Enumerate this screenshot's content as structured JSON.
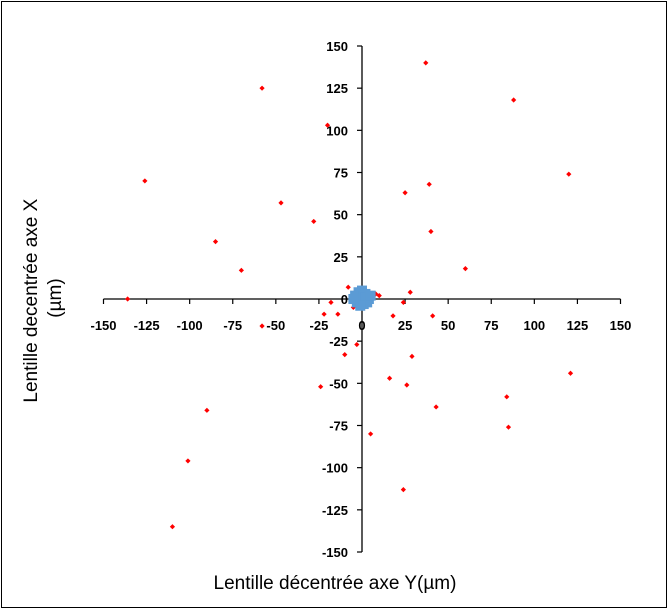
{
  "chart_data": {
    "type": "scatter",
    "title": "",
    "xlabel": "Lentille décentrée axe Y(µm)",
    "ylabel_lines": [
      "Lentille decentrée axe X",
      "(µm)"
    ],
    "xlim": [
      -150,
      150
    ],
    "ylim": [
      -150,
      150
    ],
    "x_ticks": [
      -150,
      -125,
      -100,
      -75,
      -50,
      -25,
      0,
      25,
      50,
      75,
      100,
      125,
      150
    ],
    "y_ticks": [
      -150,
      -125,
      -100,
      -75,
      -50,
      -25,
      0,
      25,
      50,
      75,
      100,
      125,
      150
    ],
    "grid": false,
    "legend": "none",
    "series": [
      {
        "color": "#ff0000",
        "marker": "diamond",
        "points": [
          [
            -136,
            0
          ],
          [
            -126,
            70
          ],
          [
            -110,
            -135
          ],
          [
            -101,
            -96
          ],
          [
            -90,
            -66
          ],
          [
            -85,
            34
          ],
          [
            -70,
            17
          ],
          [
            -58,
            125
          ],
          [
            -58,
            -16
          ],
          [
            -47,
            57
          ],
          [
            -28,
            46
          ],
          [
            -24,
            -52
          ],
          [
            -22,
            -9
          ],
          [
            -20,
            103
          ],
          [
            -18,
            -2
          ],
          [
            -14,
            -9
          ],
          [
            -10,
            -33
          ],
          [
            -8,
            7
          ],
          [
            -5,
            -5
          ],
          [
            -3,
            -27
          ],
          [
            2,
            -3
          ],
          [
            5,
            -80
          ],
          [
            8,
            3
          ],
          [
            10,
            2
          ],
          [
            16,
            -47
          ],
          [
            18,
            -10
          ],
          [
            24,
            -2
          ],
          [
            24,
            -113
          ],
          [
            25,
            63
          ],
          [
            26,
            -51
          ],
          [
            28,
            4
          ],
          [
            29,
            -34
          ],
          [
            37,
            140
          ],
          [
            39,
            68
          ],
          [
            40,
            40
          ],
          [
            41,
            -10
          ],
          [
            43,
            -64
          ],
          [
            60,
            18
          ],
          [
            84,
            -58
          ],
          [
            85,
            -76
          ],
          [
            88,
            118
          ],
          [
            120,
            74
          ],
          [
            121,
            -44
          ]
        ]
      },
      {
        "color": "#5b9bd5",
        "marker": "square",
        "points": [
          [
            -3,
            1
          ],
          [
            -2,
            4
          ],
          [
            -1,
            -2
          ],
          [
            0,
            2
          ],
          [
            1,
            0
          ],
          [
            2,
            -1
          ],
          [
            -2,
            -1
          ],
          [
            0,
            5
          ],
          [
            3,
            1
          ],
          [
            -1,
            3
          ],
          [
            1,
            -3
          ],
          [
            2,
            3
          ],
          [
            -3,
            -2
          ],
          [
            0,
            -1
          ],
          [
            4,
            0
          ],
          [
            -4,
            2
          ],
          [
            1,
            2
          ],
          [
            -2,
            0
          ],
          [
            3,
            -2
          ],
          [
            0,
            0
          ],
          [
            2,
            1
          ],
          [
            -1,
            -4
          ],
          [
            5,
            2
          ],
          [
            -5,
            0
          ]
        ]
      }
    ]
  }
}
